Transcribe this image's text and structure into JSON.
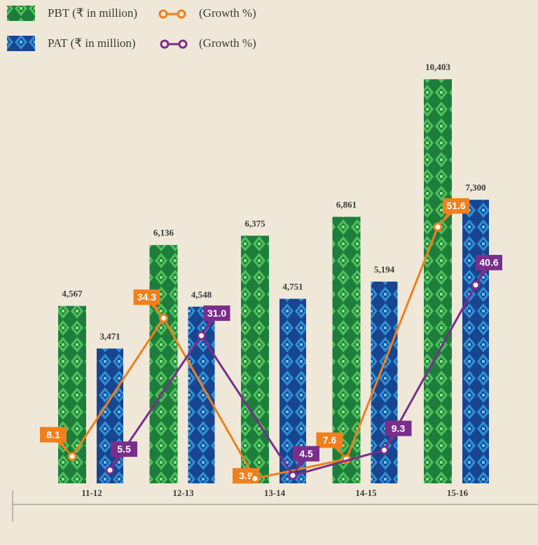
{
  "chart_data": {
    "type": "bar",
    "categories": [
      "11-12",
      "12-13",
      "13-14",
      "14-15",
      "15-16"
    ],
    "series": [
      {
        "name": "PBT (₹ in million)",
        "type": "bar",
        "color": "#2a9a48",
        "values": [
          4567,
          6136,
          6375,
          6861,
          10403
        ],
        "value_labels": [
          "4,567",
          "6,136",
          "6,375",
          "6,861",
          "10,403"
        ]
      },
      {
        "name": "PAT (₹ in million)",
        "type": "bar",
        "color": "#1d5ea8",
        "values": [
          3471,
          4548,
          4751,
          5194,
          7300
        ],
        "value_labels": [
          "3,471",
          "4,548",
          "4,751",
          "5,194",
          "7,300"
        ]
      },
      {
        "name": "(Growth %)",
        "type": "line",
        "axis": "y2",
        "color": "#f07f1e",
        "values": [
          8.1,
          34.3,
          3.9,
          7.6,
          51.6
        ]
      },
      {
        "name": "(Growth %)",
        "type": "line",
        "axis": "y2",
        "color": "#7a2e8c",
        "values": [
          5.5,
          31.0,
          4.5,
          9.3,
          40.6
        ],
        "value_labels": [
          "5.5",
          "31.0",
          "4.5",
          "9.3",
          "40.6"
        ]
      }
    ],
    "ylim": [
      0,
      11000
    ],
    "y2lim": [
      3,
      84
    ]
  }
}
